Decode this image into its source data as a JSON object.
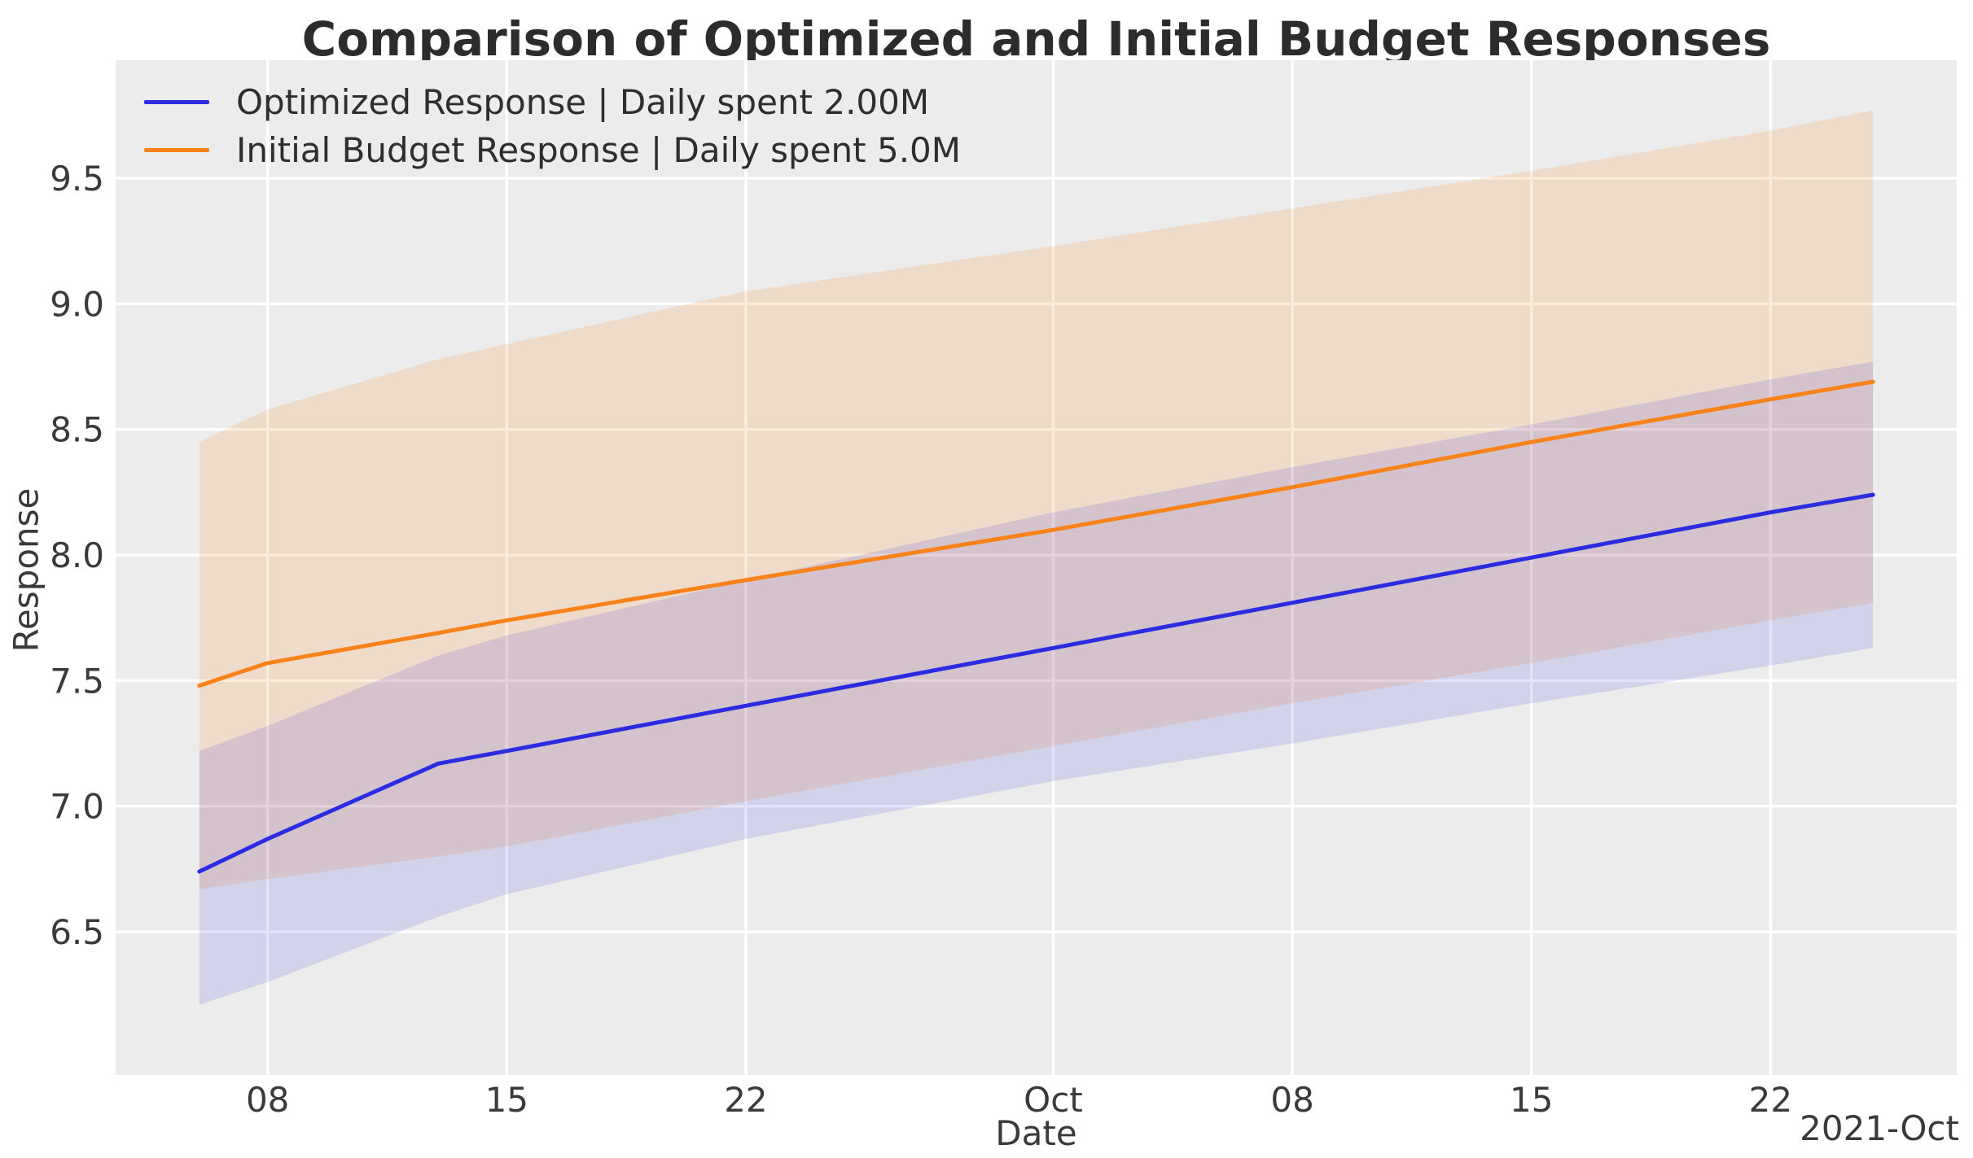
{
  "chart_data": {
    "type": "line",
    "title": "Comparison of Optimized and Initial Budget Responses",
    "xlabel": "Date",
    "ylabel": "Response",
    "x_offset_label": "2021-Oct",
    "x_unit": "days since 2021-09-06",
    "x": [
      0,
      2,
      7,
      9,
      16,
      25,
      32,
      39,
      46,
      49
    ],
    "x_dates": [
      "2021-09-06",
      "2021-09-08",
      "2021-09-13",
      "2021-09-15",
      "2021-09-22",
      "2021-10-01",
      "2021-10-08",
      "2021-10-15",
      "2021-10-22",
      "2021-10-25"
    ],
    "series": [
      {
        "name": "Optimized Response | Daily spent 2.00M",
        "color": "#2b2be2",
        "band_color": "rgba(40,40,224,0.13)",
        "values": [
          6.74,
          6.87,
          7.17,
          7.22,
          7.4,
          7.63,
          7.81,
          7.99,
          8.17,
          8.24
        ],
        "band_low": [
          6.21,
          6.3,
          6.56,
          6.65,
          6.87,
          7.1,
          7.25,
          7.41,
          7.56,
          7.63
        ],
        "band_high": [
          7.22,
          7.32,
          7.6,
          7.68,
          7.9,
          8.17,
          8.35,
          8.52,
          8.7,
          8.77
        ]
      },
      {
        "name": "Initial Budget Response | Daily spent 5.0M",
        "color": "#f8821a",
        "band_color": "rgba(255,127,14,0.15)",
        "values": [
          7.48,
          7.57,
          7.69,
          7.74,
          7.9,
          8.1,
          8.27,
          8.45,
          8.62,
          8.69
        ],
        "band_low": [
          6.67,
          6.71,
          6.8,
          6.84,
          7.02,
          7.24,
          7.41,
          7.57,
          7.74,
          7.81
        ],
        "band_high": [
          8.45,
          8.58,
          8.78,
          8.84,
          9.05,
          9.23,
          9.38,
          9.53,
          9.69,
          9.77
        ]
      }
    ],
    "xlim": [
      -2.45,
      51.45
    ],
    "ylim": [
      5.93,
      9.97
    ],
    "x_ticks": [
      {
        "pos": 2,
        "label": "08"
      },
      {
        "pos": 9,
        "label": "15"
      },
      {
        "pos": 16,
        "label": "22"
      },
      {
        "pos": 25,
        "label": "Oct"
      },
      {
        "pos": 32,
        "label": "08"
      },
      {
        "pos": 39,
        "label": "15"
      },
      {
        "pos": 46,
        "label": "22"
      }
    ],
    "y_ticks": [
      6.5,
      7.0,
      7.5,
      8.0,
      8.5,
      9.0,
      9.5
    ],
    "grid": true,
    "legend_position": "upper left",
    "colors": {
      "plot_background": "#ececec",
      "grid": "#ffffff",
      "tick_text": "#3a3a3a",
      "title_text": "#2c2c2c",
      "figure_background": "#ffffff"
    }
  }
}
